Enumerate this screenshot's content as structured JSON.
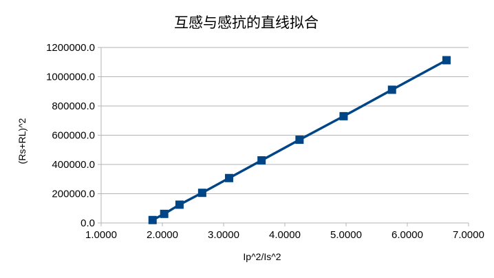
{
  "chart_data": {
    "type": "line",
    "title": "互感与感抗的直线拟合",
    "xlabel": "Ip^2/Is^2",
    "ylabel": "(Rs+RL)^2",
    "xlim": [
      1.0,
      7.0
    ],
    "ylim": [
      0,
      1200000
    ],
    "x_ticks": [
      "1.0000",
      "2.0000",
      "3.0000",
      "4.0000",
      "5.0000",
      "6.0000",
      "7.0000"
    ],
    "y_ticks": [
      "0.0",
      "200000.0",
      "400000.0",
      "600000.0",
      "800000.0",
      "1000000.0",
      "1200000.0"
    ],
    "grid": "horizontal",
    "legend": "none",
    "color": "#004586",
    "marker": "square",
    "series": [
      {
        "points": [
          [
            1.84,
            20000
          ],
          [
            2.03,
            62000
          ],
          [
            2.28,
            125000
          ],
          [
            2.65,
            206000
          ],
          [
            3.09,
            307000
          ],
          [
            3.62,
            428000
          ],
          [
            4.24,
            569000
          ],
          [
            4.96,
            730000
          ],
          [
            5.75,
            911000
          ],
          [
            6.64,
            1113000
          ]
        ]
      }
    ]
  }
}
